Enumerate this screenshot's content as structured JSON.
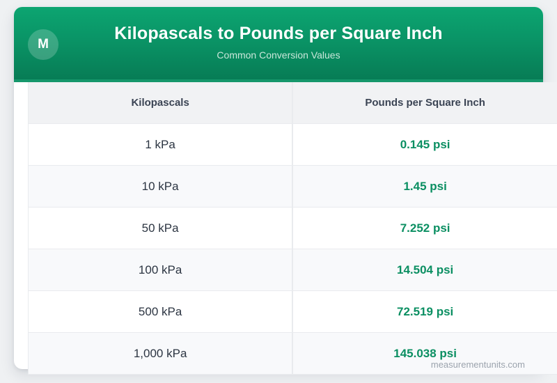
{
  "header": {
    "logo_letter": "M",
    "title": "Kilopascals to Pounds per Square Inch",
    "subtitle": "Common Conversion Values"
  },
  "table": {
    "columns": [
      "Kilopascals",
      "Pounds per Square Inch"
    ],
    "rows": [
      {
        "kpa": "1 kPa",
        "psi": "0.145 psi"
      },
      {
        "kpa": "10 kPa",
        "psi": "1.45 psi"
      },
      {
        "kpa": "50 kPa",
        "psi": "7.252 psi"
      },
      {
        "kpa": "100 kPa",
        "psi": "14.504 psi"
      },
      {
        "kpa": "500 kPa",
        "psi": "72.519 psi"
      },
      {
        "kpa": "1,000 kPa",
        "psi": "145.038 psi"
      }
    ]
  },
  "watermark": "measurementunits.com",
  "chart_data": {
    "type": "table",
    "title": "Kilopascals to Pounds per Square Inch",
    "subtitle": "Common Conversion Values",
    "columns": [
      "Kilopascals",
      "Pounds per Square Inch"
    ],
    "kpa_values": [
      1,
      10,
      50,
      100,
      500,
      1000
    ],
    "psi_values": [
      0.145,
      1.45,
      7.252,
      14.504,
      72.519,
      145.038
    ],
    "unit_from": "kPa",
    "unit_to": "psi"
  },
  "colors": {
    "header_green_top": "#0ca571",
    "header_green_bottom": "#077c55",
    "header_accent_band": "#15976b",
    "value_green": "#0b8f62",
    "table_header_bg": "#f1f2f4",
    "alt_row_bg": "#f8f9fb",
    "page_background": "#eff1f3"
  }
}
